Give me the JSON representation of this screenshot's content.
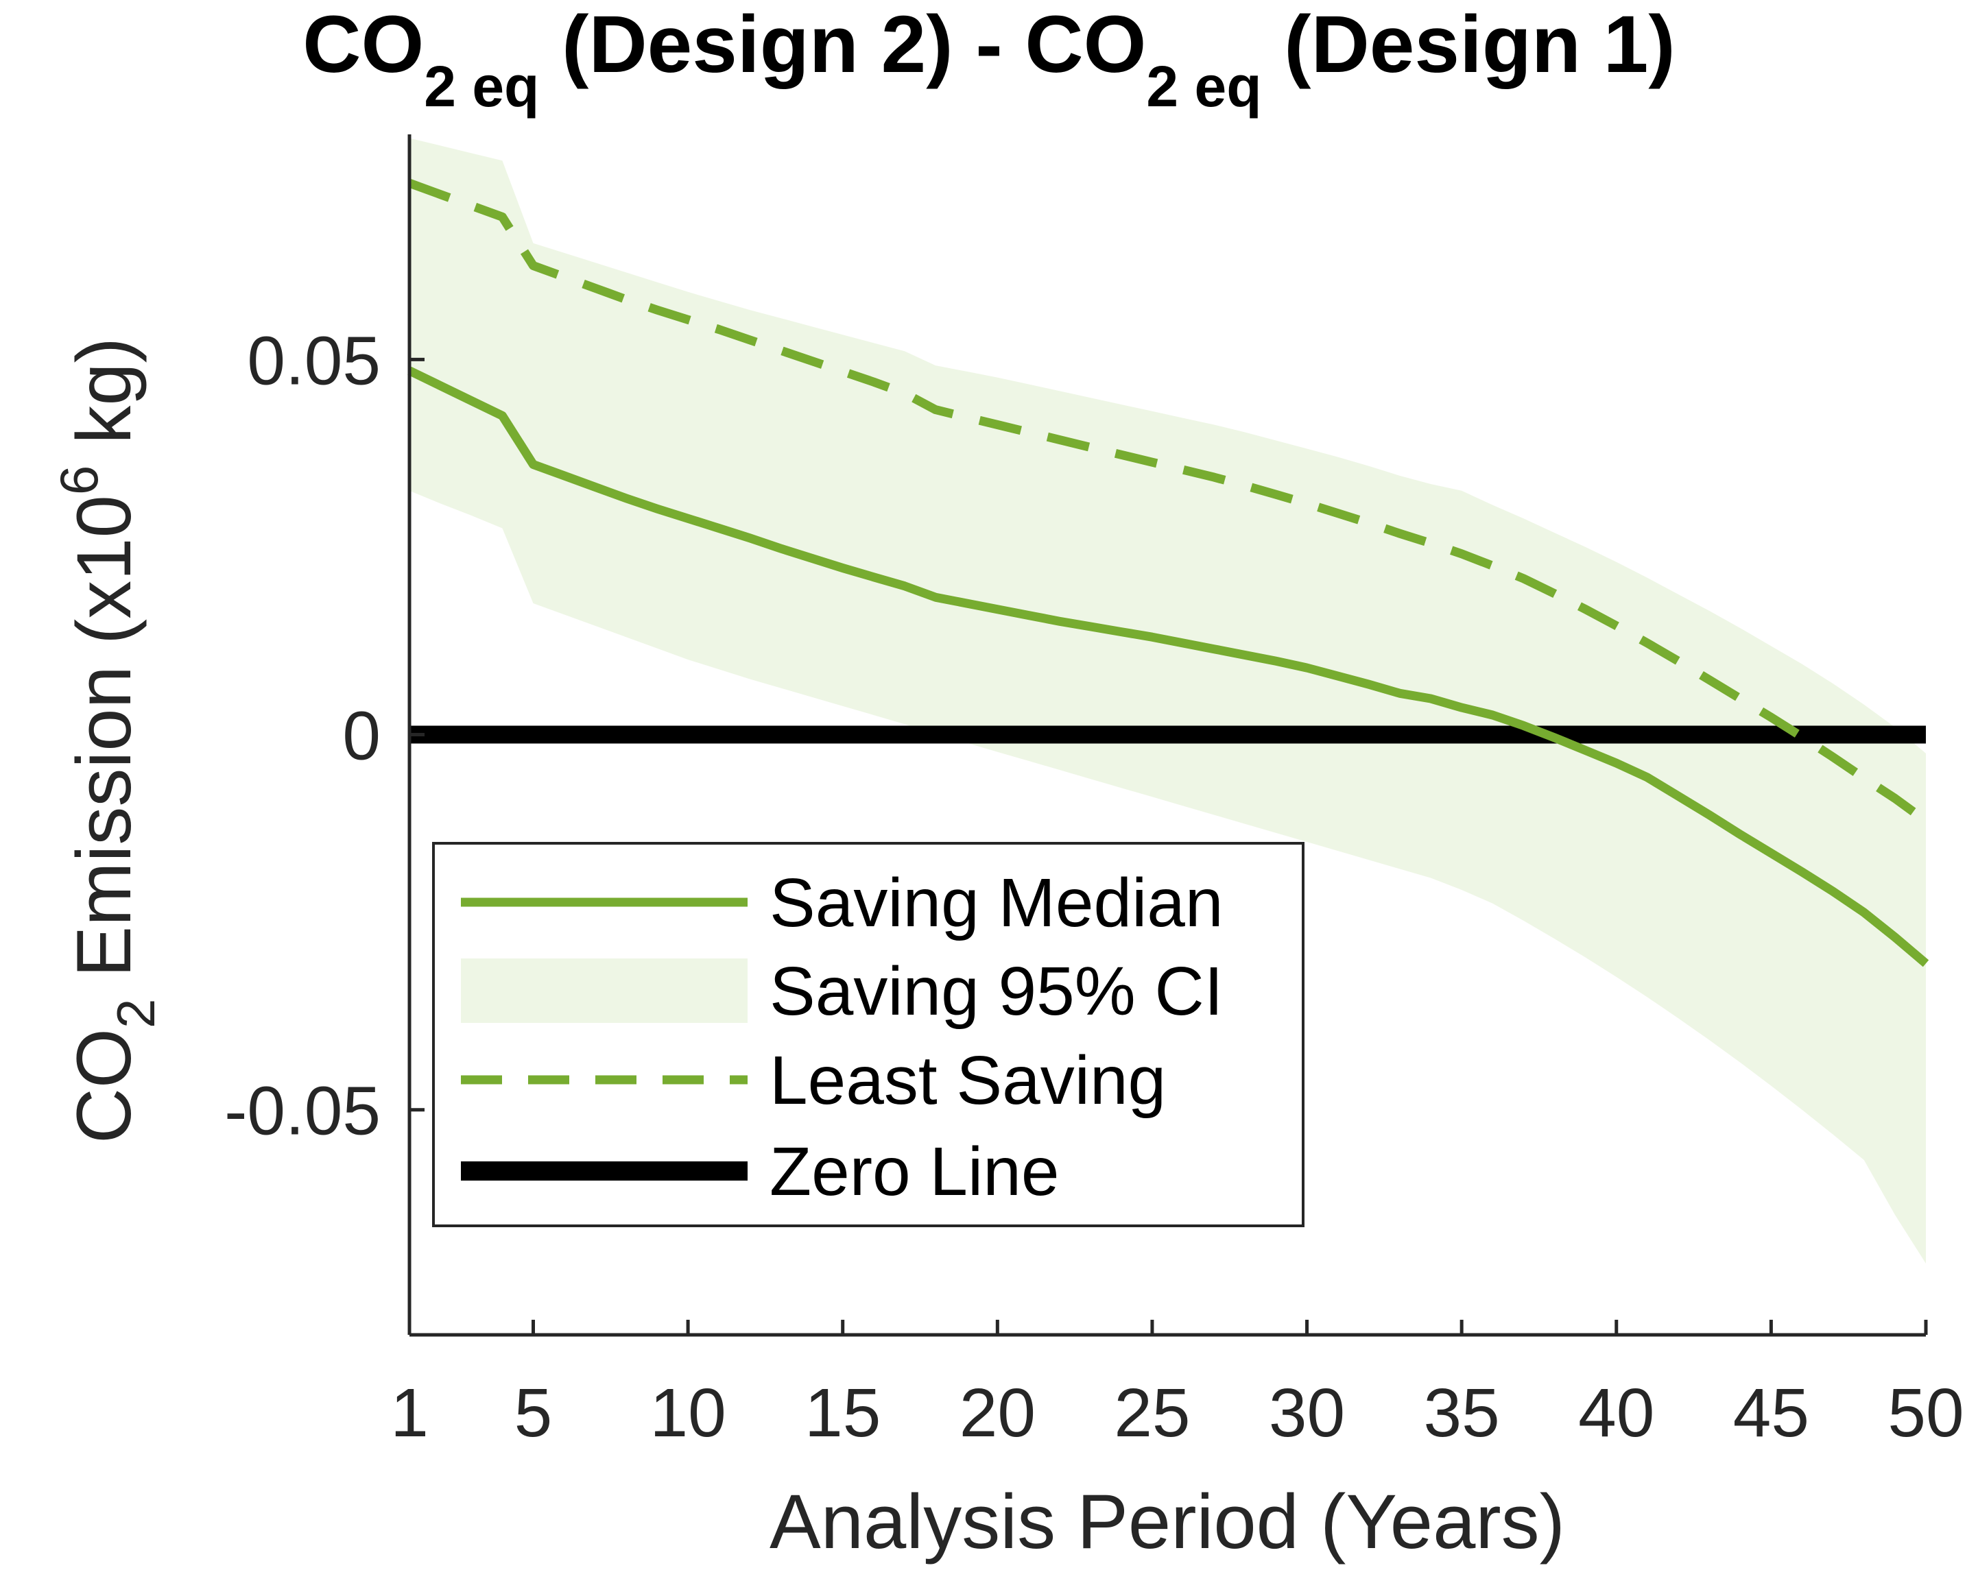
{
  "chart_data": {
    "type": "line",
    "title": {
      "part1": "CO",
      "sub1": "2 eq",
      "part2": " (Design 2) - CO",
      "sub2": "2 eq",
      "part3": " (Design 1)"
    },
    "xlabel": "Analysis Period (Years)",
    "ylabel": {
      "part1": "CO",
      "sub": "2",
      "part2": " Emission (x10",
      "sup": "6",
      "part3": " kg)"
    },
    "xlim": [
      1,
      50
    ],
    "ylim": [
      -0.08,
      0.08
    ],
    "xticks": [
      1,
      5,
      10,
      15,
      20,
      25,
      30,
      35,
      40,
      45,
      50
    ],
    "xtick_labels": [
      "1",
      "5",
      "10",
      "15",
      "20",
      "25",
      "30",
      "35",
      "40",
      "45",
      "50"
    ],
    "yticks": [
      -0.05,
      0,
      0.05
    ],
    "ytick_labels": [
      "-0.05",
      "0",
      "0.05"
    ],
    "grid": false,
    "legend_position": "bottom-left",
    "x": [
      1,
      2,
      3,
      4,
      5,
      6,
      7,
      8,
      9,
      10,
      11,
      12,
      13,
      14,
      15,
      16,
      17,
      18,
      19,
      20,
      21,
      22,
      23,
      24,
      25,
      26,
      27,
      28,
      29,
      30,
      31,
      32,
      33,
      34,
      35,
      36,
      37,
      38,
      39,
      40,
      41,
      42,
      43,
      44,
      45,
      46,
      47,
      48,
      49,
      50
    ],
    "series": [
      {
        "name": "Saving Median",
        "style": "solid",
        "color": "#77ac30",
        "values": [
          0.0485,
          0.0465,
          0.0445,
          0.0425,
          0.036,
          0.0345,
          0.033,
          0.0315,
          0.0301,
          0.0288,
          0.0275,
          0.0262,
          0.0248,
          0.0235,
          0.0222,
          0.021,
          0.0198,
          0.0183,
          0.0175,
          0.0167,
          0.0159,
          0.0151,
          0.0144,
          0.0137,
          0.013,
          0.0122,
          0.0114,
          0.0106,
          0.0098,
          0.0089,
          0.0078,
          0.0067,
          0.0055,
          0.0048,
          0.0036,
          0.0026,
          0.0012,
          -0.0004,
          -0.0021,
          -0.0038,
          -0.0057,
          -0.0082,
          -0.0107,
          -0.0133,
          -0.0158,
          -0.0183,
          -0.0209,
          -0.0237,
          -0.027,
          -0.0305
        ]
      },
      {
        "name": "Least Saving",
        "style": "dashed",
        "color": "#77ac30",
        "values": [
          0.0735,
          0.072,
          0.0705,
          0.069,
          0.0625,
          0.061,
          0.0595,
          0.058,
          0.0566,
          0.0553,
          0.054,
          0.0526,
          0.0512,
          0.0498,
          0.0484,
          0.047,
          0.0455,
          0.0433,
          0.0423,
          0.0413,
          0.0403,
          0.0393,
          0.0383,
          0.0373,
          0.0363,
          0.0353,
          0.0343,
          0.0332,
          0.032,
          0.0308,
          0.0295,
          0.0282,
          0.0268,
          0.0255,
          0.0241,
          0.0225,
          0.0208,
          0.0188,
          0.0167,
          0.0145,
          0.0122,
          0.0098,
          0.0073,
          0.0048,
          0.0023,
          -0.0003,
          -0.003,
          -0.0058,
          -0.0085,
          -0.0115
        ]
      },
      {
        "name": "Zero Line",
        "style": "solid",
        "color": "#000000",
        "values": [
          0,
          0,
          0,
          0,
          0,
          0,
          0,
          0,
          0,
          0,
          0,
          0,
          0,
          0,
          0,
          0,
          0,
          0,
          0,
          0,
          0,
          0,
          0,
          0,
          0,
          0,
          0,
          0,
          0,
          0,
          0,
          0,
          0,
          0,
          0,
          0,
          0,
          0,
          0,
          0,
          0,
          0,
          0,
          0,
          0,
          0,
          0,
          0,
          0,
          0
        ]
      }
    ],
    "band": {
      "name": "Saving 95% CI",
      "color": "#eef6e5",
      "upper": [
        0.0795,
        0.0785,
        0.0775,
        0.0765,
        0.0655,
        0.0642,
        0.0629,
        0.0616,
        0.0603,
        0.059,
        0.0578,
        0.0566,
        0.0555,
        0.0544,
        0.0533,
        0.0522,
        0.0511,
        0.0492,
        0.0484,
        0.0476,
        0.0467,
        0.0458,
        0.0449,
        0.044,
        0.0431,
        0.0422,
        0.0413,
        0.0403,
        0.0392,
        0.0381,
        0.037,
        0.0358,
        0.0345,
        0.0334,
        0.0325,
        0.0306,
        0.0288,
        0.0269,
        0.025,
        0.023,
        0.0209,
        0.0187,
        0.0165,
        0.0142,
        0.0118,
        0.0094,
        0.0068,
        0.004,
        0.001,
        -0.0025
      ],
      "lower": [
        0.0325,
        0.0308,
        0.0292,
        0.0275,
        0.0175,
        0.016,
        0.0145,
        0.013,
        0.0115,
        0.01,
        0.0087,
        0.0074,
        0.0062,
        0.005,
        0.0038,
        0.0026,
        0.0014,
        0.0001,
        -0.0011,
        -0.0023,
        -0.0035,
        -0.0047,
        -0.0059,
        -0.0071,
        -0.0083,
        -0.0095,
        -0.0107,
        -0.0119,
        -0.0131,
        -0.0143,
        -0.0155,
        -0.0167,
        -0.0179,
        -0.0191,
        -0.0207,
        -0.0225,
        -0.0248,
        -0.0272,
        -0.0297,
        -0.0323,
        -0.035,
        -0.0378,
        -0.0407,
        -0.0437,
        -0.0468,
        -0.05,
        -0.0533,
        -0.0567,
        -0.064,
        -0.0705
      ]
    }
  }
}
